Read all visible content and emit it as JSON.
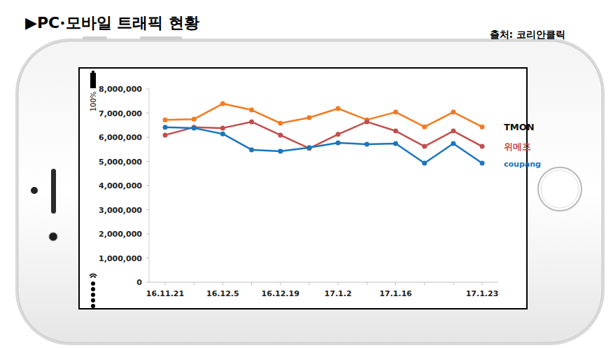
{
  "chart_data": {
    "type": "line",
    "title": "▶PC·모바일 트래픽 현황",
    "annotations": [
      "출처: 코리안클릭",
      "100%"
    ],
    "categories": [
      "16.11.21",
      null,
      "16.12.5",
      null,
      "16.12.19",
      null,
      "17.1.2",
      null,
      "17.1.16",
      null,
      null,
      "17.1.23"
    ],
    "series": [
      {
        "name": "TMON",
        "color": "#f47b20",
        "marker": "circle",
        "line_style": "solid",
        "values": [
          6720000,
          6750000,
          7390000,
          7130000,
          6580000,
          6810000,
          7190000,
          6720000,
          7040000,
          6430000,
          7040000,
          6430000
        ]
      },
      {
        "name": "위메프",
        "color": "#c0504d",
        "marker": "circle",
        "line_style": "solid",
        "values": [
          6090000,
          6410000,
          6380000,
          6640000,
          6090000,
          5540000,
          6120000,
          6640000,
          6260000,
          5620000,
          6260000,
          5620000
        ]
      },
      {
        "name": "coupang",
        "color": "#1b75bc",
        "marker": "circle",
        "line_style": "solid",
        "values": [
          6410000,
          6380000,
          6140000,
          5480000,
          5420000,
          5570000,
          5770000,
          5710000,
          5740000,
          4930000,
          5740000,
          4930000
        ]
      }
    ],
    "ylim": [
      0,
      8000000
    ],
    "yticks": [
      0,
      {
        "value": 1000000,
        "label": "1,000,000"
      },
      {
        "value": 2000000,
        "label": "2,000,000"
      },
      {
        "value": 3000000,
        "label": "3,000,000"
      },
      {
        "value": 4000000,
        "label": "4,000,000"
      },
      {
        "value": 5000000,
        "label": "5,000,000"
      },
      {
        "value": 6000000,
        "label": "6,000,000"
      },
      {
        "value": 7000000,
        "label": "7,000,000"
      },
      {
        "value": 8000000,
        "label": "8,000,000"
      }
    ],
    "grid": false,
    "legend": "right"
  }
}
